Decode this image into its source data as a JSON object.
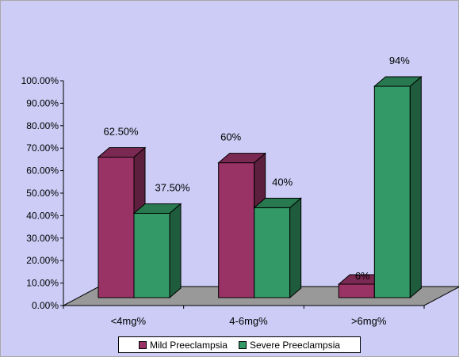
{
  "chart_data": {
    "type": "bar",
    "categories": [
      "<4mg%",
      "4-6mg%",
      ">6mg%"
    ],
    "series": [
      {
        "name": "Mild Preeclampsia",
        "values": [
          62.5,
          60,
          6
        ],
        "labels": [
          "62.50%",
          "60%",
          "6%"
        ],
        "color": "#993366",
        "side_color": "#5c1f3d",
        "top_color": "#7a2952"
      },
      {
        "name": "Severe Preeclampsia",
        "values": [
          37.5,
          40,
          94
        ],
        "labels": [
          "37.50%",
          "40%",
          "94%"
        ],
        "color": "#339966",
        "side_color": "#1f5c3d",
        "top_color": "#28794f"
      }
    ],
    "y_ticks": [
      "0.00%",
      "10.00%",
      "20.00%",
      "30.00%",
      "40.00%",
      "50.00%",
      "60.00%",
      "70.00%",
      "80.00%",
      "90.00%",
      "100.00%"
    ],
    "ylim": [
      0,
      100
    ],
    "background": "#ccccf6",
    "floor_color": "#999999",
    "legend_position": "bottom"
  }
}
